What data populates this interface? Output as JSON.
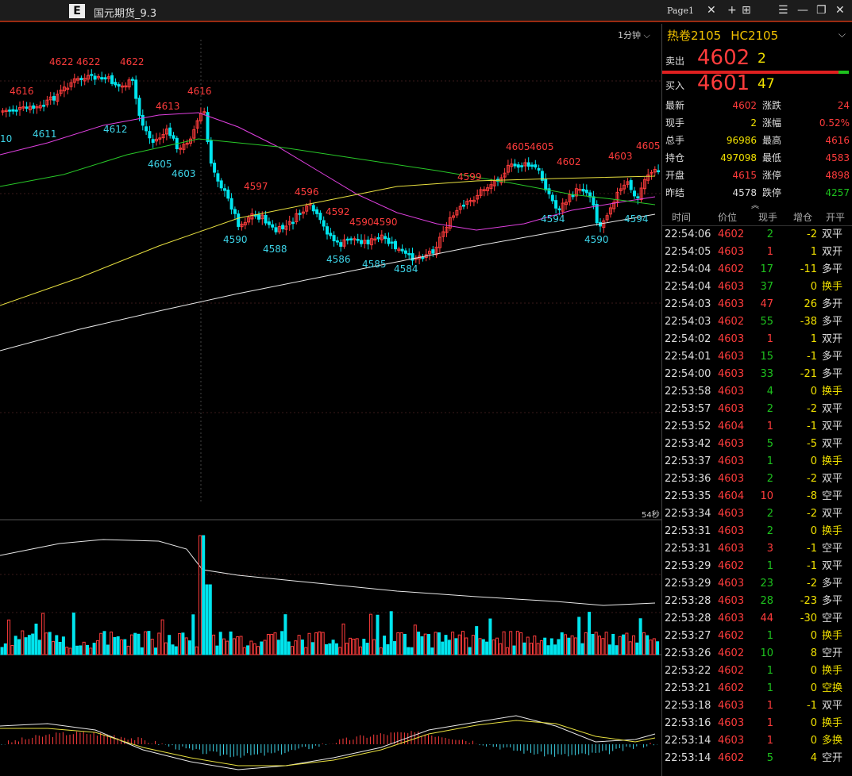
{
  "app": {
    "title": "国元期货_9.3",
    "logo_letter": "E"
  },
  "tab": {
    "label": "Page1"
  },
  "chart": {
    "period_label": "1分钟",
    "countdown": "54秒"
  },
  "chart_data": {
    "type": "candlestick",
    "high_labels": [
      "4622",
      "4622",
      "4622",
      "4616",
      "4613",
      "4616",
      "4597",
      "4596",
      "4592",
      "4590",
      "4590",
      "4599",
      "4605",
      "4605",
      "4602",
      "4603",
      "4605"
    ],
    "low_labels": [
      "10",
      "4611",
      "4612",
      "4605",
      "4603",
      "4590",
      "4588",
      "4586",
      "4585",
      "4584",
      "4594",
      "4590",
      "4594"
    ]
  },
  "quote": {
    "symbol_name": "热卷2105",
    "symbol_code": "HC2105",
    "ask_label": "卖出",
    "ask_price": "4602",
    "ask_vol": "2",
    "bid_label": "买入",
    "bid_price": "4601",
    "bid_vol": "47"
  },
  "stats": [
    {
      "l1": "最新",
      "v1": "4602",
      "c1": "c-red",
      "l2": "涨跌",
      "v2": "24",
      "c2": "c-red"
    },
    {
      "l1": "现手",
      "v1": "2",
      "c1": "c-yellow",
      "l2": "涨幅",
      "v2": "0.52%",
      "c2": "c-red"
    },
    {
      "l1": "总手",
      "v1": "96986",
      "c1": "c-yellow",
      "l2": "最高",
      "v2": "4616",
      "c2": "c-red"
    },
    {
      "l1": "持仓",
      "v1": "497098",
      "c1": "c-yellow",
      "l2": "最低",
      "v2": "4583",
      "c2": "c-red"
    },
    {
      "l1": "开盘",
      "v1": "4615",
      "c1": "c-red",
      "l2": "涨停",
      "v2": "4898",
      "c2": "c-red"
    },
    {
      "l1": "昨结",
      "v1": "4578",
      "c1": "c-white",
      "l2": "跌停",
      "v2": "4257",
      "c2": "c-green"
    }
  ],
  "ticks_header": {
    "time": "时间",
    "price": "价位",
    "vol": "现手",
    "oi": "增仓",
    "type": "开平"
  },
  "ticks": [
    {
      "time": "22:54:06",
      "price": "4602",
      "vol": "2",
      "vc": "c-green",
      "oi": "-2",
      "oc": "c-yellow",
      "type": "双平",
      "tc": "c-white"
    },
    {
      "time": "22:54:05",
      "price": "4603",
      "vol": "1",
      "vc": "c-red",
      "oi": "1",
      "oc": "c-yellow",
      "type": "双开",
      "tc": "c-white"
    },
    {
      "time": "22:54:04",
      "price": "4602",
      "vol": "17",
      "vc": "c-green",
      "oi": "-11",
      "oc": "c-yellow",
      "type": "多平",
      "tc": "c-white"
    },
    {
      "time": "22:54:04",
      "price": "4603",
      "vol": "37",
      "vc": "c-green",
      "oi": "0",
      "oc": "c-yellow",
      "type": "换手",
      "tc": "c-yellow"
    },
    {
      "time": "22:54:03",
      "price": "4603",
      "vol": "47",
      "vc": "c-red",
      "oi": "26",
      "oc": "c-yellow",
      "type": "多开",
      "tc": "c-white"
    },
    {
      "time": "22:54:03",
      "price": "4602",
      "vol": "55",
      "vc": "c-green",
      "oi": "-38",
      "oc": "c-yellow",
      "type": "多平",
      "tc": "c-white"
    },
    {
      "time": "22:54:02",
      "price": "4603",
      "vol": "1",
      "vc": "c-red",
      "oi": "1",
      "oc": "c-yellow",
      "type": "双开",
      "tc": "c-white"
    },
    {
      "time": "22:54:01",
      "price": "4603",
      "vol": "15",
      "vc": "c-green",
      "oi": "-1",
      "oc": "c-yellow",
      "type": "多平",
      "tc": "c-white"
    },
    {
      "time": "22:54:00",
      "price": "4603",
      "vol": "33",
      "vc": "c-green",
      "oi": "-21",
      "oc": "c-yellow",
      "type": "多平",
      "tc": "c-white"
    },
    {
      "time": "22:53:58",
      "price": "4603",
      "vol": "4",
      "vc": "c-green",
      "oi": "0",
      "oc": "c-yellow",
      "type": "换手",
      "tc": "c-yellow"
    },
    {
      "time": "22:53:57",
      "price": "4603",
      "vol": "2",
      "vc": "c-green",
      "oi": "-2",
      "oc": "c-yellow",
      "type": "双平",
      "tc": "c-white"
    },
    {
      "time": "22:53:52",
      "price": "4604",
      "vol": "1",
      "vc": "c-red",
      "oi": "-1",
      "oc": "c-yellow",
      "type": "双平",
      "tc": "c-white"
    },
    {
      "time": "22:53:42",
      "price": "4603",
      "vol": "5",
      "vc": "c-green",
      "oi": "-5",
      "oc": "c-yellow",
      "type": "双平",
      "tc": "c-white"
    },
    {
      "time": "22:53:37",
      "price": "4603",
      "vol": "1",
      "vc": "c-green",
      "oi": "0",
      "oc": "c-yellow",
      "type": "换手",
      "tc": "c-yellow"
    },
    {
      "time": "22:53:36",
      "price": "4603",
      "vol": "2",
      "vc": "c-green",
      "oi": "-2",
      "oc": "c-yellow",
      "type": "双平",
      "tc": "c-white"
    },
    {
      "time": "22:53:35",
      "price": "4604",
      "vol": "10",
      "vc": "c-red",
      "oi": "-8",
      "oc": "c-yellow",
      "type": "空平",
      "tc": "c-white"
    },
    {
      "time": "22:53:34",
      "price": "4603",
      "vol": "2",
      "vc": "c-green",
      "oi": "-2",
      "oc": "c-yellow",
      "type": "双平",
      "tc": "c-white"
    },
    {
      "time": "22:53:31",
      "price": "4603",
      "vol": "2",
      "vc": "c-green",
      "oi": "0",
      "oc": "c-yellow",
      "type": "换手",
      "tc": "c-yellow"
    },
    {
      "time": "22:53:31",
      "price": "4603",
      "vol": "3",
      "vc": "c-red",
      "oi": "-1",
      "oc": "c-yellow",
      "type": "空平",
      "tc": "c-white"
    },
    {
      "time": "22:53:29",
      "price": "4602",
      "vol": "1",
      "vc": "c-green",
      "oi": "-1",
      "oc": "c-yellow",
      "type": "双平",
      "tc": "c-white"
    },
    {
      "time": "22:53:29",
      "price": "4603",
      "vol": "23",
      "vc": "c-green",
      "oi": "-2",
      "oc": "c-yellow",
      "type": "多平",
      "tc": "c-white"
    },
    {
      "time": "22:53:28",
      "price": "4603",
      "vol": "28",
      "vc": "c-green",
      "oi": "-23",
      "oc": "c-yellow",
      "type": "多平",
      "tc": "c-white"
    },
    {
      "time": "22:53:28",
      "price": "4603",
      "vol": "44",
      "vc": "c-red",
      "oi": "-30",
      "oc": "c-yellow",
      "type": "空平",
      "tc": "c-white"
    },
    {
      "time": "22:53:27",
      "price": "4602",
      "vol": "1",
      "vc": "c-green",
      "oi": "0",
      "oc": "c-yellow",
      "type": "换手",
      "tc": "c-yellow"
    },
    {
      "time": "22:53:26",
      "price": "4602",
      "vol": "10",
      "vc": "c-green",
      "oi": "8",
      "oc": "c-yellow",
      "type": "空开",
      "tc": "c-white"
    },
    {
      "time": "22:53:22",
      "price": "4602",
      "vol": "1",
      "vc": "c-green",
      "oi": "0",
      "oc": "c-yellow",
      "type": "换手",
      "tc": "c-yellow"
    },
    {
      "time": "22:53:21",
      "price": "4602",
      "vol": "1",
      "vc": "c-green",
      "oi": "0",
      "oc": "c-yellow",
      "type": "空换",
      "tc": "c-yellow"
    },
    {
      "time": "22:53:18",
      "price": "4603",
      "vol": "1",
      "vc": "c-red",
      "oi": "-1",
      "oc": "c-yellow",
      "type": "双平",
      "tc": "c-white"
    },
    {
      "time": "22:53:16",
      "price": "4603",
      "vol": "1",
      "vc": "c-red",
      "oi": "0",
      "oc": "c-yellow",
      "type": "换手",
      "tc": "c-yellow"
    },
    {
      "time": "22:53:14",
      "price": "4603",
      "vol": "1",
      "vc": "c-red",
      "oi": "0",
      "oc": "c-yellow",
      "type": "多换",
      "tc": "c-yellow"
    },
    {
      "time": "22:53:14",
      "price": "4602",
      "vol": "5",
      "vc": "c-green",
      "oi": "4",
      "oc": "c-yellow",
      "type": "空开",
      "tc": "c-white"
    }
  ]
}
